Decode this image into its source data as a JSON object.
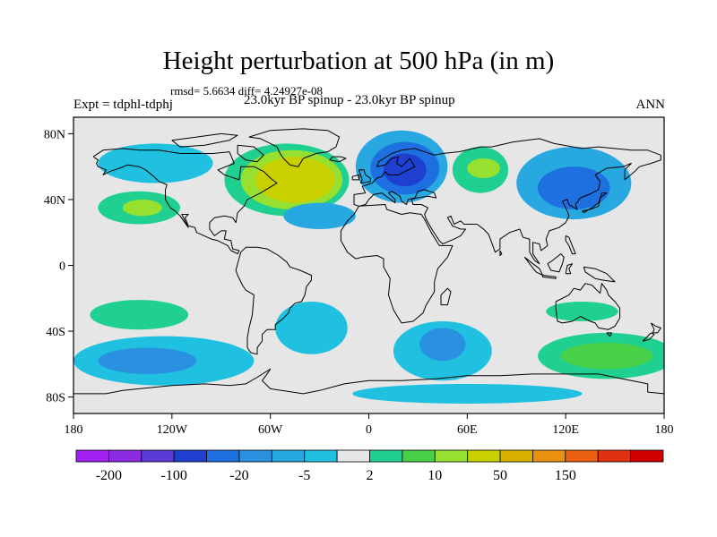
{
  "title": "Height perturbation at 500 hPa (in m)",
  "stats_line": "rmsd= 5.6634 diff= 4.24927e-08",
  "experiment_label": "Expt = tdphl-tdphj",
  "comparison_label": "23.0kyr BP spinup - 23.0kyr BP spinup",
  "season_label": "ANN",
  "map": {
    "projection": "cylindrical equidistant",
    "lon_range": [
      -180,
      180
    ],
    "lat_range": [
      -90,
      90
    ],
    "background_color": "#e6e6e6",
    "coastline_color": "#000000",
    "lat_ticks": [
      {
        "value": 80,
        "label": "80N"
      },
      {
        "value": 40,
        "label": "40N"
      },
      {
        "value": 0,
        "label": "0"
      },
      {
        "value": -40,
        "label": "40S"
      },
      {
        "value": -80,
        "label": "80S"
      }
    ],
    "lon_ticks": [
      {
        "value": -180,
        "label": "180"
      },
      {
        "value": -120,
        "label": "120W"
      },
      {
        "value": -60,
        "label": "60W"
      },
      {
        "value": 0,
        "label": "0"
      },
      {
        "value": 60,
        "label": "60E"
      },
      {
        "value": 120,
        "label": "120E"
      },
      {
        "value": 180,
        "label": "180"
      }
    ]
  },
  "colorbar": {
    "colors": [
      "#a020f0",
      "#8a2be2",
      "#5a3bd8",
      "#1f3fd0",
      "#1e6fe0",
      "#2a90e0",
      "#28a8e0",
      "#20c0e0",
      "#e6e6e6",
      "#20d090",
      "#48d048",
      "#98e030",
      "#c8d000",
      "#d8b000",
      "#e89010",
      "#e86010",
      "#e03010",
      "#d00000"
    ],
    "labels": [
      {
        "label": "-200",
        "boundary": 1
      },
      {
        "label": "-100",
        "boundary": 3
      },
      {
        "label": "-20",
        "boundary": 5
      },
      {
        "label": "-5",
        "boundary": 7
      },
      {
        "label": "2",
        "boundary": 9
      },
      {
        "label": "10",
        "boundary": 11
      },
      {
        "label": "50",
        "boundary": 13
      },
      {
        "label": "150",
        "boundary": 15
      }
    ]
  },
  "anomalies": [
    {
      "name": "north-atlantic-positive-outer",
      "lon": -50,
      "lat": 52,
      "rlon": 38,
      "rlat": 22,
      "color": "#20d090"
    },
    {
      "name": "north-atlantic-positive-mid",
      "lon": -47,
      "lat": 52,
      "rlon": 31,
      "rlat": 18,
      "color": "#98e030"
    },
    {
      "name": "north-atlantic-positive-core",
      "lon": -45,
      "lat": 52,
      "rlon": 24,
      "rlat": 14,
      "color": "#c8d000"
    },
    {
      "name": "europe-negative-outer",
      "lon": 20,
      "lat": 60,
      "rlon": 28,
      "rlat": 22,
      "color": "#28a8e0"
    },
    {
      "name": "europe-negative-mid",
      "lon": 22,
      "lat": 59,
      "rlon": 21,
      "rlat": 16,
      "color": "#1e6fe0"
    },
    {
      "name": "europe-negative-core",
      "lon": 22,
      "lat": 58,
      "rlon": 13,
      "rlat": 10,
      "color": "#1f3fd0"
    },
    {
      "name": "north-pacific-negative-outer",
      "lon": 125,
      "lat": 50,
      "rlon": 35,
      "rlat": 22,
      "color": "#28a8e0"
    },
    {
      "name": "north-pacific-negative-core",
      "lon": 125,
      "lat": 47,
      "rlon": 22,
      "rlat": 13,
      "color": "#1e6fe0"
    },
    {
      "name": "asia-positive-outer",
      "lon": 68,
      "lat": 58,
      "rlon": 17,
      "rlat": 14,
      "color": "#20d090"
    },
    {
      "name": "asia-positive-core",
      "lon": 70,
      "lat": 59,
      "rlon": 10,
      "rlat": 6,
      "color": "#98e030"
    },
    {
      "name": "east-pacific-positive",
      "lon": -140,
      "lat": 35,
      "rlon": 25,
      "rlat": 10,
      "color": "#20d090"
    },
    {
      "name": "east-pacific-positive-core",
      "lon": -138,
      "lat": 35,
      "rlon": 12,
      "rlat": 5,
      "color": "#98e030"
    },
    {
      "name": "mid-atlantic-negative",
      "lon": -30,
      "lat": 30,
      "rlon": 22,
      "rlat": 8,
      "color": "#28a8e0"
    },
    {
      "name": "canada-negative",
      "lon": -130,
      "lat": 62,
      "rlon": 35,
      "rlat": 12,
      "color": "#20c0e0"
    },
    {
      "name": "south-pacific-positive",
      "lon": -140,
      "lat": -30,
      "rlon": 30,
      "rlat": 9,
      "color": "#20d090"
    },
    {
      "name": "south-pacific-negative-outer",
      "lon": -125,
      "lat": -58,
      "rlon": 55,
      "rlat": 15,
      "color": "#20c0e0"
    },
    {
      "name": "south-pacific-negative-core",
      "lon": -135,
      "lat": -58,
      "rlon": 30,
      "rlat": 8,
      "color": "#2a90e0"
    },
    {
      "name": "south-atlantic-negative",
      "lon": -35,
      "lat": -38,
      "rlon": 22,
      "rlat": 16,
      "color": "#20c0e0"
    },
    {
      "name": "south-indian-negative-outer",
      "lon": 45,
      "lat": -52,
      "rlon": 30,
      "rlat": 18,
      "color": "#20c0e0"
    },
    {
      "name": "south-indian-negative-core",
      "lon": 45,
      "lat": -48,
      "rlon": 14,
      "rlat": 10,
      "color": "#2a90e0"
    },
    {
      "name": "australia-positive-outer",
      "lon": 145,
      "lat": -55,
      "rlon": 42,
      "rlat": 14,
      "color": "#20d090"
    },
    {
      "name": "australia-positive-core",
      "lon": 145,
      "lat": -55,
      "rlon": 28,
      "rlat": 8,
      "color": "#48d048"
    },
    {
      "name": "tasman-positive",
      "lon": 130,
      "lat": -28,
      "rlon": 22,
      "rlat": 6,
      "color": "#20d090"
    },
    {
      "name": "antarctic-negative",
      "lon": 60,
      "lat": -78,
      "rlon": 70,
      "rlat": 6,
      "color": "#20c0e0"
    }
  ]
}
